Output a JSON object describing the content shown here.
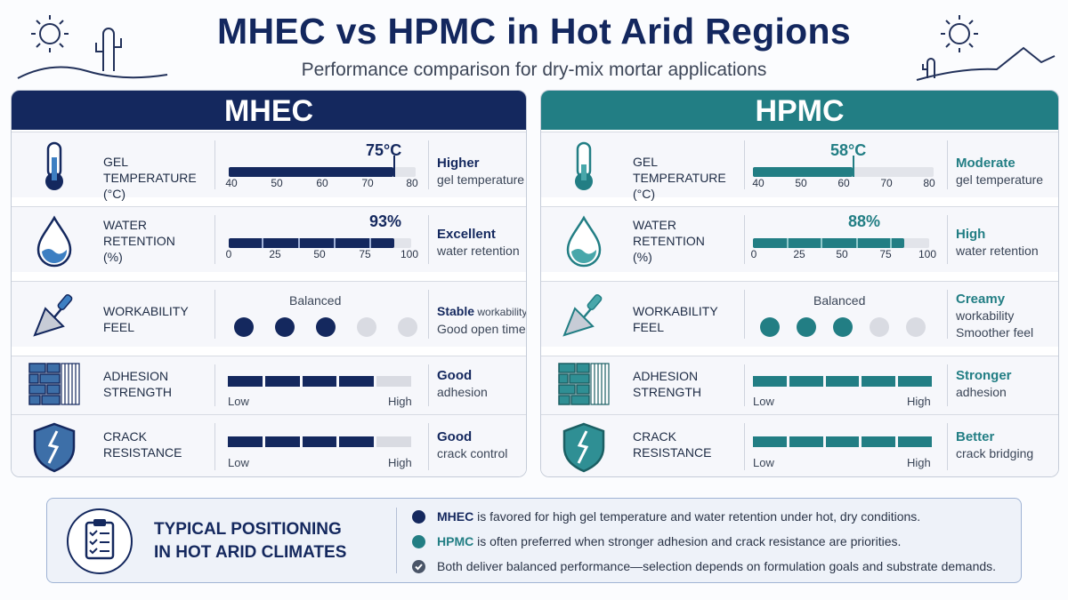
{
  "header": {
    "title": "MHEC vs HPMC in Hot Arid Regions",
    "subtitle": "Performance comparison for dry-mix mortar applications"
  },
  "colors": {
    "mhec": "#14285e",
    "hpmc": "#227e84",
    "empty": "#d9dbe2"
  },
  "mhec": {
    "title": "MHEC",
    "gel": {
      "label1": "GEL TEMPERATURE",
      "label2": "(°C)",
      "value_text": "75°C",
      "value": 75,
      "range": [
        40,
        80
      ],
      "ticks": [
        "40",
        "50",
        "60",
        "70",
        "80"
      ],
      "verdict_strong": "Higher",
      "verdict_text": "gel temperature"
    },
    "water": {
      "label1": "WATER",
      "label2": "RETENTION",
      "label3": "(%)",
      "value_text": "93%",
      "value": 93,
      "range": [
        0,
        100
      ],
      "ticks": [
        "0",
        "25",
        "50",
        "75",
        "100"
      ],
      "verdict_strong": "Excellent",
      "verdict_text": "water retention"
    },
    "work": {
      "label1": "WORKABILITY",
      "label2": "FEEL",
      "caption": "Balanced",
      "dots_filled": 3,
      "dots_total": 5,
      "verdict_strong": "Stable",
      "verdict_rest": " workability",
      "verdict_text": "Good open time"
    },
    "adhesion": {
      "label1": "ADHESION",
      "label2": "STRENGTH",
      "level": 4,
      "of": 5,
      "low": "Low",
      "high": "High",
      "verdict_strong": "Good",
      "verdict_text": "adhesion"
    },
    "crack": {
      "label1": "CRACK",
      "label2": "RESISTANCE",
      "level": 4,
      "of": 5,
      "low": "Low",
      "high": "High",
      "verdict_strong": "Good",
      "verdict_text": "crack control"
    }
  },
  "hpmc": {
    "title": "HPMC",
    "gel": {
      "label1": "GEL TEMPERATURE",
      "label2": "(°C)",
      "value_text": "58°C",
      "value": 58,
      "range": [
        40,
        80
      ],
      "ticks": [
        "40",
        "50",
        "60",
        "70",
        "80"
      ],
      "verdict_strong": "Moderate",
      "verdict_text": "gel temperature"
    },
    "water": {
      "label1": "WATER",
      "label2": "RETENTION",
      "label3": "(%)",
      "value_text": "88%",
      "value": 88,
      "range": [
        0,
        100
      ],
      "ticks": [
        "0",
        "25",
        "50",
        "75",
        "100"
      ],
      "verdict_strong": "High",
      "verdict_text": "water retention"
    },
    "work": {
      "label1": "WORKABILITY",
      "label2": "FEEL",
      "caption": "Balanced",
      "dots_filled": 3,
      "dots_total": 5,
      "verdict_strong": "Creamy",
      "verdict_text": "workability",
      "verdict_text2": "Smoother feel"
    },
    "adhesion": {
      "label1": "ADHESION",
      "label2": "STRENGTH",
      "level": 5,
      "of": 5,
      "low": "Low",
      "high": "High",
      "verdict_strong": "Stronger",
      "verdict_text": "adhesion"
    },
    "crack": {
      "label1": "CRACK",
      "label2": "RESISTANCE",
      "level": 5,
      "of": 5,
      "low": "Low",
      "high": "High",
      "verdict_strong": "Better",
      "verdict_text": "crack bridging"
    }
  },
  "summary": {
    "title_line1": "TYPICAL POSITIONING",
    "title_line2": "IN HOT ARID CLIMATES",
    "line1_kw": "MHEC",
    "line1_text": " is favored for high gel temperature and water retention under hot, dry conditions.",
    "line2_kw": "HPMC",
    "line2_text": " is often preferred when stronger adhesion and crack resistance are priorities.",
    "line3_text": "Both deliver balanced performance—selection depends on formulation goals and substrate demands."
  }
}
